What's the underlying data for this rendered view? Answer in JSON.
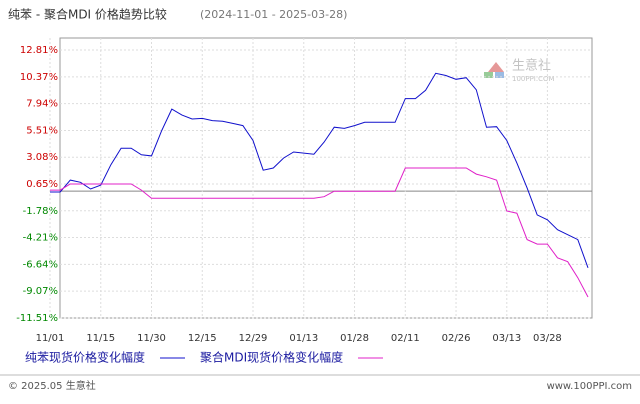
{
  "chart_data": {
    "type": "line",
    "title": "纯苯 - 聚合MDI 价格趋势比较",
    "subtitle": "(2024-11-01 - 2025-03-28)",
    "categories": [
      "11/01",
      null,
      null,
      null,
      null,
      "11/15",
      null,
      null,
      null,
      null,
      "11/30",
      null,
      null,
      null,
      null,
      "12/15",
      null,
      null,
      null,
      null,
      "12/29",
      null,
      null,
      null,
      null,
      "01/13",
      null,
      null,
      null,
      null,
      "01/28",
      null,
      null,
      null,
      null,
      "02/11",
      null,
      null,
      null,
      null,
      "02/26",
      null,
      null,
      null,
      null,
      "03/13",
      null,
      null,
      null,
      "03/28",
      null,
      null,
      null,
      null
    ],
    "series": [
      {
        "name": "纯苯现货价格变化幅度",
        "color": "#1010cc",
        "values": [
          -0.08,
          -0.08,
          1.0,
          0.8,
          0.2,
          0.55,
          2.4,
          3.9,
          3.9,
          3.3,
          3.2,
          5.5,
          7.45,
          6.9,
          6.55,
          6.6,
          6.4,
          6.35,
          6.15,
          5.95,
          4.6,
          1.9,
          2.1,
          3.0,
          3.55,
          3.45,
          3.35,
          4.45,
          5.8,
          5.7,
          5.95,
          6.25,
          6.25,
          6.25,
          6.25,
          8.4,
          8.4,
          9.15,
          10.7,
          10.5,
          10.15,
          10.3,
          9.2,
          5.8,
          5.85,
          4.6,
          2.55,
          0.3,
          -2.15,
          -2.6,
          -3.5,
          -3.95,
          -4.4,
          -6.95
        ]
      },
      {
        "name": "聚合MDI现货价格变化幅度",
        "color": "#e020c8",
        "values": [
          0.1,
          0.1,
          0.65,
          0.65,
          0.65,
          0.65,
          0.65,
          0.65,
          0.65,
          0.1,
          -0.65,
          -0.65,
          -0.65,
          -0.65,
          -0.65,
          -0.65,
          -0.65,
          -0.65,
          -0.65,
          -0.65,
          -0.65,
          -0.65,
          -0.65,
          -0.65,
          -0.65,
          -0.65,
          -0.65,
          -0.5,
          0.0,
          0.0,
          0.0,
          0.0,
          0.0,
          0.0,
          0.0,
          2.1,
          2.1,
          2.1,
          2.1,
          2.1,
          2.1,
          2.1,
          1.55,
          1.3,
          1.0,
          -1.8,
          -2.0,
          -4.4,
          -4.8,
          -4.8,
          -6.05,
          -6.4,
          -7.85,
          -9.6
        ]
      }
    ],
    "ylim": [
      -11.51,
      12.81
    ],
    "yticks": [
      {
        "value": 12.81,
        "label": "12.81%"
      },
      {
        "value": 10.37,
        "label": "10.37%"
      },
      {
        "value": 7.94,
        "label": "7.94%"
      },
      {
        "value": 5.51,
        "label": "5.51%"
      },
      {
        "value": 3.08,
        "label": "3.08%"
      },
      {
        "value": 0.65,
        "label": "0.65%"
      },
      {
        "value": -1.78,
        "label": "-1.78%"
      },
      {
        "value": -4.21,
        "label": "-4.21%"
      },
      {
        "value": -6.64,
        "label": "-6.64%"
      },
      {
        "value": -9.07,
        "label": "-9.07%"
      },
      {
        "value": -11.51,
        "label": "-11.51%"
      }
    ],
    "positive_tick_color": "#cc0000",
    "negative_tick_color": "#008800",
    "grid": true,
    "watermark": {
      "brand": "生意社",
      "site": "100PPI.COM"
    },
    "footer": {
      "left": "© 2025.05 生意社",
      "right": "www.100PPI.com"
    }
  }
}
